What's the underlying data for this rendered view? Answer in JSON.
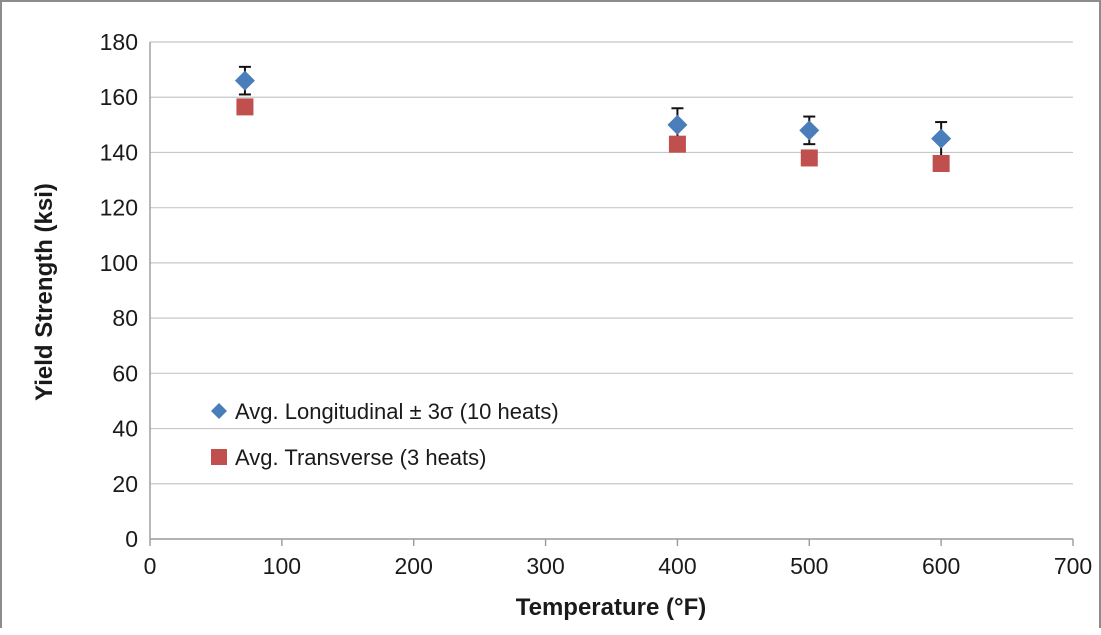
{
  "chart_data": {
    "type": "scatter",
    "xlabel": "Temperature (°F)",
    "ylabel": "Yield Strength (ksi)",
    "xlim": [
      0,
      700
    ],
    "ylim": [
      0,
      180
    ],
    "x_ticks": [
      "0",
      "100",
      "200",
      "300",
      "400",
      "500",
      "600",
      "700"
    ],
    "y_ticks": [
      "0",
      "20",
      "40",
      "60",
      "80",
      "100",
      "120",
      "140",
      "160",
      "180"
    ],
    "grid": "horizontal",
    "legend_position": "center-left",
    "series": [
      {
        "name": "Avg. Longitudinal ± 3σ (10 heats)",
        "marker": "diamond",
        "color": "#4a7ebb",
        "points": [
          {
            "x": 72,
            "y": 166,
            "err_plus": 5,
            "err_minus": 5
          },
          {
            "x": 400,
            "y": 150,
            "err_plus": 6,
            "err_minus": 5
          },
          {
            "x": 500,
            "y": 148,
            "err_plus": 5,
            "err_minus": 5
          },
          {
            "x": 600,
            "y": 145,
            "err_plus": 6,
            "err_minus": 7
          }
        ]
      },
      {
        "name": "Avg. Transverse (3 heats)",
        "marker": "square",
        "color": "#c0504d",
        "points": [
          {
            "x": 72,
            "y": 156.5
          },
          {
            "x": 400,
            "y": 143
          },
          {
            "x": 500,
            "y": 138
          },
          {
            "x": 600,
            "y": 136
          }
        ]
      }
    ]
  }
}
